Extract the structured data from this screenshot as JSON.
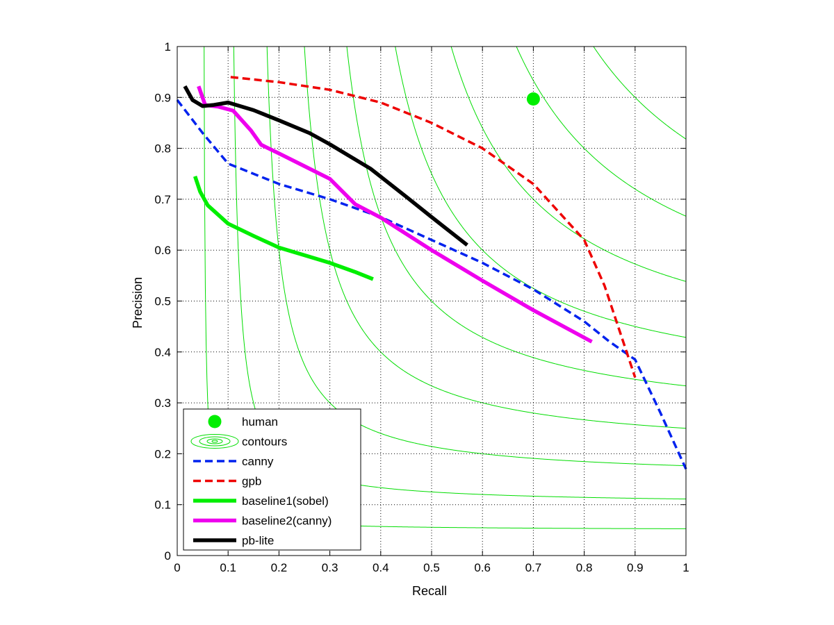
{
  "chart_data": {
    "type": "line",
    "xlabel": "Recall",
    "ylabel": "Precision",
    "xlim": [
      0,
      1
    ],
    "ylim": [
      0,
      1
    ],
    "grid": true,
    "legend_position": "bottom-left",
    "x_ticks": [
      "0",
      "0.1",
      "0.2",
      "0.3",
      "0.4",
      "0.5",
      "0.6",
      "0.7",
      "0.8",
      "0.9",
      "1"
    ],
    "y_ticks": [
      "0",
      "0.1",
      "0.2",
      "0.3",
      "0.4",
      "0.5",
      "0.6",
      "0.7",
      "0.8",
      "0.9",
      "1"
    ],
    "contours": {
      "name": "contours",
      "color": "#00dd00",
      "f_levels": [
        0.1,
        0.2,
        0.3,
        0.4,
        0.5,
        0.6,
        0.7,
        0.8,
        0.9
      ]
    },
    "human": {
      "name": "human",
      "color": "#00ee00",
      "x": 0.7,
      "y": 0.897
    },
    "series": [
      {
        "name": "canny",
        "color": "#0022ee",
        "style": "dashed",
        "points": [
          [
            0.0,
            0.895
          ],
          [
            0.05,
            0.83
          ],
          [
            0.1,
            0.77
          ],
          [
            0.2,
            0.73
          ],
          [
            0.3,
            0.7
          ],
          [
            0.4,
            0.665
          ],
          [
            0.5,
            0.62
          ],
          [
            0.6,
            0.575
          ],
          [
            0.7,
            0.523
          ],
          [
            0.8,
            0.46
          ],
          [
            0.85,
            0.42
          ],
          [
            0.9,
            0.385
          ],
          [
            0.95,
            0.28
          ],
          [
            1.0,
            0.17
          ]
        ]
      },
      {
        "name": "gpb",
        "color": "#ee0000",
        "style": "dashed",
        "points": [
          [
            0.105,
            0.94
          ],
          [
            0.2,
            0.93
          ],
          [
            0.3,
            0.915
          ],
          [
            0.4,
            0.89
          ],
          [
            0.5,
            0.85
          ],
          [
            0.6,
            0.8
          ],
          [
            0.7,
            0.73
          ],
          [
            0.8,
            0.62
          ],
          [
            0.84,
            0.53
          ],
          [
            0.87,
            0.44
          ],
          [
            0.9,
            0.35
          ]
        ]
      },
      {
        "name": "baseline1(sobel)",
        "color": "#00ee00",
        "style": "solid",
        "points": [
          [
            0.035,
            0.745
          ],
          [
            0.045,
            0.715
          ],
          [
            0.06,
            0.688
          ],
          [
            0.1,
            0.652
          ],
          [
            0.15,
            0.628
          ],
          [
            0.2,
            0.605
          ],
          [
            0.25,
            0.59
          ],
          [
            0.3,
            0.575
          ],
          [
            0.35,
            0.557
          ],
          [
            0.385,
            0.543
          ]
        ]
      },
      {
        "name": "baseline2(canny)",
        "color": "#ee00ee",
        "style": "solid",
        "points": [
          [
            0.042,
            0.922
          ],
          [
            0.055,
            0.885
          ],
          [
            0.08,
            0.882
          ],
          [
            0.11,
            0.874
          ],
          [
            0.145,
            0.835
          ],
          [
            0.165,
            0.807
          ],
          [
            0.2,
            0.79
          ],
          [
            0.25,
            0.765
          ],
          [
            0.3,
            0.74
          ],
          [
            0.35,
            0.69
          ],
          [
            0.4,
            0.664
          ],
          [
            0.5,
            0.6
          ],
          [
            0.6,
            0.54
          ],
          [
            0.7,
            0.482
          ],
          [
            0.815,
            0.42
          ]
        ]
      },
      {
        "name": "pb-lite",
        "color": "#000000",
        "style": "solid",
        "points": [
          [
            0.015,
            0.922
          ],
          [
            0.03,
            0.895
          ],
          [
            0.05,
            0.883
          ],
          [
            0.07,
            0.885
          ],
          [
            0.1,
            0.89
          ],
          [
            0.15,
            0.875
          ],
          [
            0.2,
            0.855
          ],
          [
            0.26,
            0.83
          ],
          [
            0.3,
            0.808
          ],
          [
            0.38,
            0.76
          ],
          [
            0.45,
            0.705
          ],
          [
            0.5,
            0.665
          ],
          [
            0.57,
            0.61
          ]
        ]
      }
    ]
  }
}
